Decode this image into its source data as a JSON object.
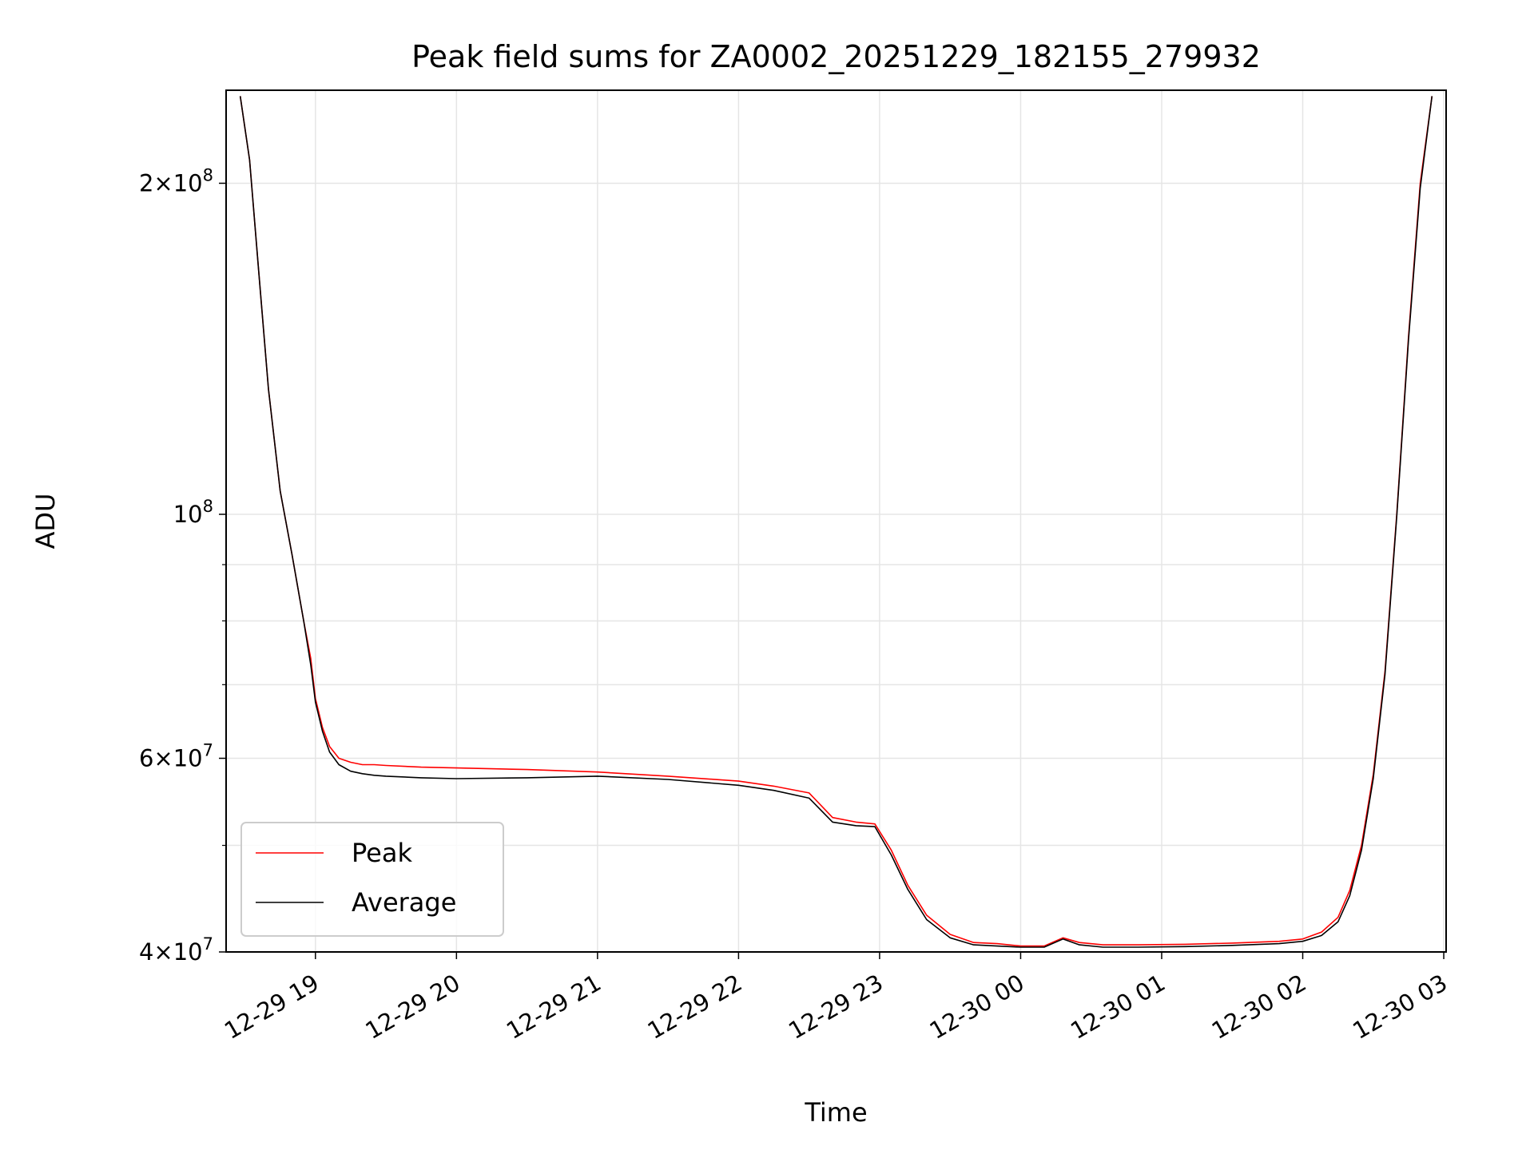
{
  "chart_data": {
    "type": "line",
    "title": "Peak field sums for ZA0002_20251229_182155_279932",
    "xlabel": "Time",
    "ylabel": "ADU",
    "y_scale": "log",
    "ylim": [
      40000000,
      243000000
    ],
    "xlim": [
      "2025-12-29 18:22",
      "2025-12-30 03:01"
    ],
    "grid": true,
    "legend_position": "lower-left",
    "x_ticks": [
      {
        "value": "2025-12-29 19:00",
        "label": "12-29 19"
      },
      {
        "value": "2025-12-29 20:00",
        "label": "12-29 20"
      },
      {
        "value": "2025-12-29 21:00",
        "label": "12-29 21"
      },
      {
        "value": "2025-12-29 22:00",
        "label": "12-29 22"
      },
      {
        "value": "2025-12-29 23:00",
        "label": "12-29 23"
      },
      {
        "value": "2025-12-30 00:00",
        "label": "12-30 00"
      },
      {
        "value": "2025-12-30 01:00",
        "label": "12-30 01"
      },
      {
        "value": "2025-12-30 02:00",
        "label": "12-30 02"
      },
      {
        "value": "2025-12-30 03:00",
        "label": "12-30 03"
      }
    ],
    "y_ticks": [
      {
        "value": 40000000,
        "mantissa": "4",
        "exponent": "7"
      },
      {
        "value": 60000000,
        "mantissa": "6",
        "exponent": "7"
      },
      {
        "value": 100000000,
        "mantissa": "",
        "exponent": "8"
      },
      {
        "value": 200000000,
        "mantissa": "2",
        "exponent": "8"
      }
    ],
    "y_minor_ticks": [
      50000000,
      70000000,
      80000000,
      90000000
    ],
    "series": [
      {
        "name": "Peak",
        "color": "#ff0000",
        "x": [
          "2025-12-29 18:28",
          "2025-12-29 18:32",
          "2025-12-29 18:36",
          "2025-12-29 18:40",
          "2025-12-29 18:45",
          "2025-12-29 18:50",
          "2025-12-29 18:55",
          "2025-12-29 18:58",
          "2025-12-29 19:00",
          "2025-12-29 19:03",
          "2025-12-29 19:06",
          "2025-12-29 19:10",
          "2025-12-29 19:15",
          "2025-12-29 19:20",
          "2025-12-29 19:25",
          "2025-12-29 19:30",
          "2025-12-29 19:45",
          "2025-12-29 20:00",
          "2025-12-29 20:30",
          "2025-12-29 21:00",
          "2025-12-29 21:30",
          "2025-12-29 22:00",
          "2025-12-29 22:15",
          "2025-12-29 22:30",
          "2025-12-29 22:40",
          "2025-12-29 22:50",
          "2025-12-29 22:58",
          "2025-12-29 23:05",
          "2025-12-29 23:12",
          "2025-12-29 23:20",
          "2025-12-29 23:30",
          "2025-12-29 23:40",
          "2025-12-29 23:50",
          "2025-12-30 00:00",
          "2025-12-30 00:10",
          "2025-12-30 00:18",
          "2025-12-30 00:25",
          "2025-12-30 00:35",
          "2025-12-30 00:50",
          "2025-12-30 01:10",
          "2025-12-30 01:30",
          "2025-12-30 01:50",
          "2025-12-30 02:00",
          "2025-12-30 02:08",
          "2025-12-30 02:15",
          "2025-12-30 02:20",
          "2025-12-30 02:25",
          "2025-12-30 02:30",
          "2025-12-30 02:35",
          "2025-12-30 02:40",
          "2025-12-30 02:45",
          "2025-12-30 02:50",
          "2025-12-30 02:55"
        ],
        "y": [
          240000000,
          210000000,
          165000000,
          130000000,
          105000000,
          92000000,
          80000000,
          74000000,
          68000000,
          64000000,
          61500000,
          60000000,
          59500000,
          59200000,
          59200000,
          59100000,
          58900000,
          58800000,
          58600000,
          58300000,
          57800000,
          57200000,
          56600000,
          55800000,
          53000000,
          52500000,
          52300000,
          49500000,
          46000000,
          43200000,
          41500000,
          40800000,
          40700000,
          40500000,
          40500000,
          41200000,
          40800000,
          40600000,
          40600000,
          40650000,
          40750000,
          40900000,
          41100000,
          41700000,
          43000000,
          45500000,
          50000000,
          58000000,
          72000000,
          100000000,
          145000000,
          200000000,
          240000000
        ]
      },
      {
        "name": "Average",
        "color": "#000000",
        "x": [
          "2025-12-29 18:28",
          "2025-12-29 18:32",
          "2025-12-29 18:36",
          "2025-12-29 18:40",
          "2025-12-29 18:45",
          "2025-12-29 18:50",
          "2025-12-29 18:55",
          "2025-12-29 18:58",
          "2025-12-29 19:00",
          "2025-12-29 19:03",
          "2025-12-29 19:06",
          "2025-12-29 19:10",
          "2025-12-29 19:15",
          "2025-12-29 19:20",
          "2025-12-29 19:25",
          "2025-12-29 19:30",
          "2025-12-29 19:45",
          "2025-12-29 20:00",
          "2025-12-29 20:30",
          "2025-12-29 21:00",
          "2025-12-29 21:30",
          "2025-12-29 22:00",
          "2025-12-29 22:15",
          "2025-12-29 22:30",
          "2025-12-29 22:40",
          "2025-12-29 22:50",
          "2025-12-29 22:58",
          "2025-12-29 23:05",
          "2025-12-29 23:12",
          "2025-12-29 23:20",
          "2025-12-29 23:30",
          "2025-12-29 23:40",
          "2025-12-29 23:50",
          "2025-12-30 00:00",
          "2025-12-30 00:10",
          "2025-12-30 00:18",
          "2025-12-30 00:25",
          "2025-12-30 00:35",
          "2025-12-30 00:50",
          "2025-12-30 01:10",
          "2025-12-30 01:30",
          "2025-12-30 01:50",
          "2025-12-30 02:00",
          "2025-12-30 02:08",
          "2025-12-30 02:15",
          "2025-12-30 02:20",
          "2025-12-30 02:25",
          "2025-12-30 02:30",
          "2025-12-30 02:35",
          "2025-12-30 02:40",
          "2025-12-30 02:45",
          "2025-12-30 02:50",
          "2025-12-30 02:55"
        ],
        "y": [
          240000000,
          210000000,
          165000000,
          130000000,
          105000000,
          92000000,
          80000000,
          73000000,
          67500000,
          63500000,
          60800000,
          59200000,
          58400000,
          58100000,
          57900000,
          57800000,
          57600000,
          57500000,
          57600000,
          57800000,
          57400000,
          56700000,
          56100000,
          55200000,
          52500000,
          52100000,
          52000000,
          49000000,
          45600000,
          42800000,
          41200000,
          40600000,
          40500000,
          40400000,
          40400000,
          41100000,
          40600000,
          40400000,
          40400000,
          40450000,
          40550000,
          40700000,
          40900000,
          41400000,
          42600000,
          45000000,
          49500000,
          57500000,
          71500000,
          99500000,
          144000000,
          198000000,
          240000000
        ]
      }
    ]
  }
}
